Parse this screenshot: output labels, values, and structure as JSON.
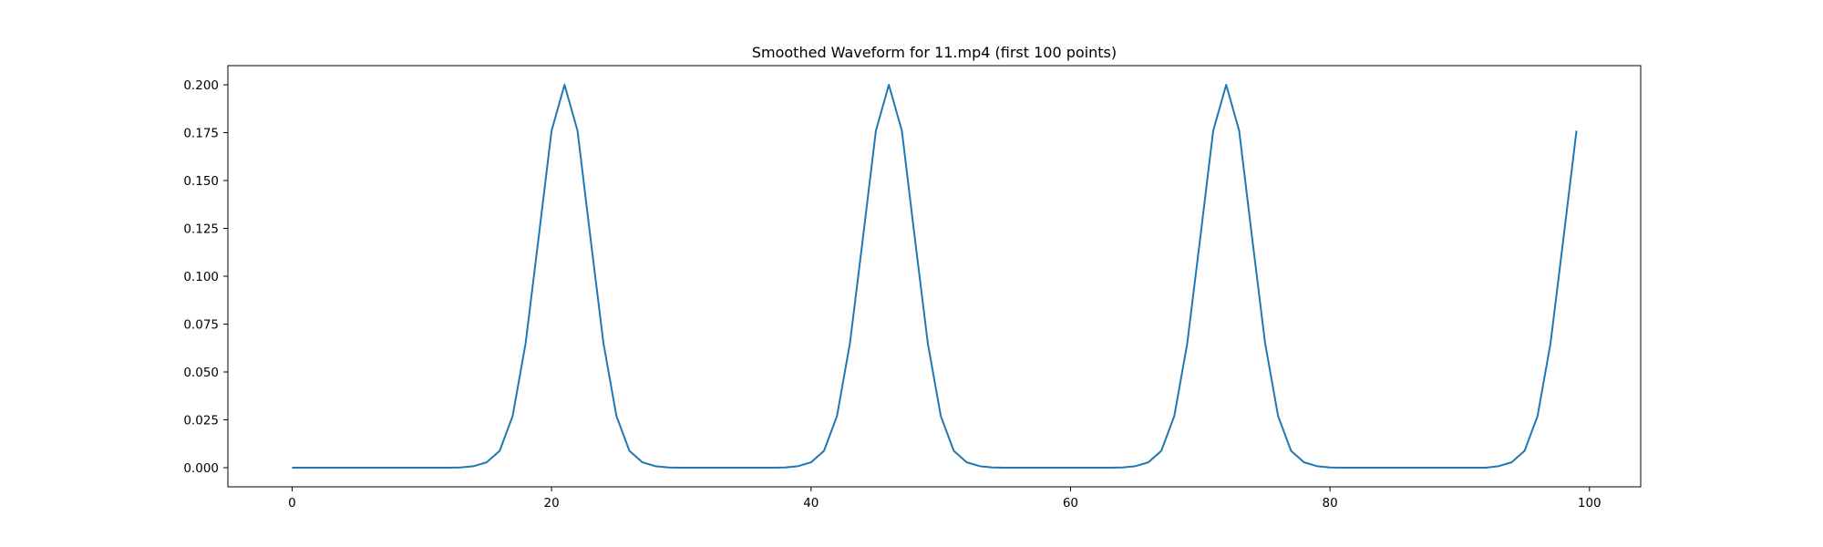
{
  "chart_data": {
    "type": "line",
    "title": "Smoothed Waveform for 11.mp4 (first 100 points)",
    "xlabel": "",
    "ylabel": "",
    "xlim": [
      -4.95,
      103.95
    ],
    "ylim": [
      -0.01,
      0.21
    ],
    "xticks": [
      0,
      20,
      40,
      60,
      80,
      100
    ],
    "xtick_labels": [
      "0",
      "20",
      "40",
      "60",
      "80",
      "100"
    ],
    "yticks": [
      0.0,
      0.025,
      0.05,
      0.075,
      0.1,
      0.125,
      0.15,
      0.175,
      0.2
    ],
    "ytick_labels": [
      "0.000",
      "0.025",
      "0.050",
      "0.075",
      "0.100",
      "0.125",
      "0.150",
      "0.175",
      "0.200"
    ],
    "grid": false,
    "series": [
      {
        "color": "#1f77b4",
        "x": [
          0,
          1,
          2,
          3,
          4,
          5,
          6,
          7,
          8,
          9,
          10,
          11,
          12,
          13,
          14,
          15,
          16,
          17,
          18,
          19,
          20,
          21,
          22,
          23,
          24,
          25,
          26,
          27,
          28,
          29,
          30,
          31,
          32,
          33,
          34,
          35,
          36,
          37,
          38,
          39,
          40,
          41,
          42,
          43,
          44,
          45,
          46,
          47,
          48,
          49,
          50,
          51,
          52,
          53,
          54,
          55,
          56,
          57,
          58,
          59,
          60,
          61,
          62,
          63,
          64,
          65,
          66,
          67,
          68,
          69,
          70,
          71,
          72,
          73,
          74,
          75,
          76,
          77,
          78,
          79,
          80,
          81,
          82,
          83,
          84,
          85,
          86,
          87,
          88,
          89,
          90,
          91,
          92,
          93,
          94,
          95,
          96,
          97,
          98,
          99
        ],
        "values": [
          0,
          0,
          0,
          0,
          0,
          0,
          0,
          0,
          0,
          0,
          0,
          0,
          0,
          0.0001,
          0.0008,
          0.0028,
          0.0088,
          0.027,
          0.065,
          0.12,
          0.176,
          0.2,
          0.176,
          0.12,
          0.065,
          0.027,
          0.0088,
          0.0028,
          0.0008,
          0.0001,
          0,
          0,
          0,
          0,
          0,
          0,
          0,
          0,
          0.0001,
          0.0008,
          0.0028,
          0.0088,
          0.027,
          0.065,
          0.12,
          0.176,
          0.2,
          0.176,
          0.12,
          0.065,
          0.027,
          0.0088,
          0.0028,
          0.0008,
          0.0001,
          0,
          0,
          0,
          0,
          0,
          0,
          0,
          0,
          0,
          0.0001,
          0.0008,
          0.0028,
          0.0088,
          0.027,
          0.065,
          0.12,
          0.176,
          0.2,
          0.176,
          0.12,
          0.065,
          0.027,
          0.0088,
          0.0028,
          0.0008,
          0.0001,
          0,
          0,
          0,
          0,
          0,
          0,
          0,
          0,
          0,
          0,
          0,
          0,
          0.0008,
          0.0028,
          0.0088,
          0.027,
          0.065,
          0.12,
          0.176
        ]
      }
    ]
  }
}
